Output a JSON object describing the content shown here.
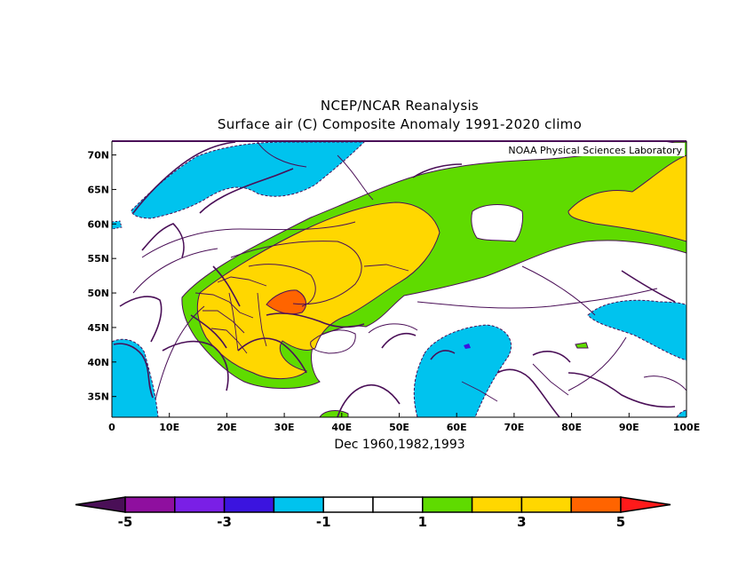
{
  "titles": {
    "line1": "NCEP/NCAR Reanalysis",
    "line2": "Surface air (C) Composite Anomaly 1991-2020 climo",
    "period": "Dec 1960,1982,1993",
    "credit": "NOAA Physical Sciences Laboratory"
  },
  "map": {
    "lon_range": [
      0,
      100
    ],
    "lat_range": [
      32,
      72
    ],
    "x_ticks": [
      {
        "lon": 0,
        "label": "0"
      },
      {
        "lon": 10,
        "label": "10E"
      },
      {
        "lon": 20,
        "label": "20E"
      },
      {
        "lon": 30,
        "label": "30E"
      },
      {
        "lon": 40,
        "label": "40E"
      },
      {
        "lon": 50,
        "label": "50E"
      },
      {
        "lon": 60,
        "label": "60E"
      },
      {
        "lon": 70,
        "label": "70E"
      },
      {
        "lon": 80,
        "label": "80E"
      },
      {
        "lon": 90,
        "label": "90E"
      },
      {
        "lon": 100,
        "label": "100E"
      }
    ],
    "y_ticks": [
      {
        "lat": 35,
        "label": "35N"
      },
      {
        "lat": 40,
        "label": "40N"
      },
      {
        "lat": 45,
        "label": "45N"
      },
      {
        "lat": 50,
        "label": "50N"
      },
      {
        "lat": 55,
        "label": "55N"
      },
      {
        "lat": 60,
        "label": "60N"
      },
      {
        "lat": 65,
        "label": "65N"
      },
      {
        "lat": 70,
        "label": "70N"
      }
    ]
  },
  "colorbar": {
    "colors": [
      "#4a0f57",
      "#8f0f9f",
      "#7a1fe6",
      "#3b14df",
      "#00c3ee",
      "#ffffff",
      "#ffffff",
      "#5fdb00",
      "#ffd700",
      "#ffd700",
      "#ff6400",
      "#ff1a1a"
    ],
    "labels": [
      {
        "index": 1,
        "text": "-5"
      },
      {
        "index": 3,
        "text": "-3"
      },
      {
        "index": 5,
        "text": "-1"
      },
      {
        "index": 7,
        "text": "1"
      },
      {
        "index": 9,
        "text": "3"
      },
      {
        "index": 11,
        "text": "5"
      }
    ]
  },
  "colors": {
    "cold": "#00c3ee",
    "warm1": "#5fdb00",
    "warm2": "#ffd700",
    "warm3": "#ff6400",
    "contour": "#4a0f57"
  }
}
